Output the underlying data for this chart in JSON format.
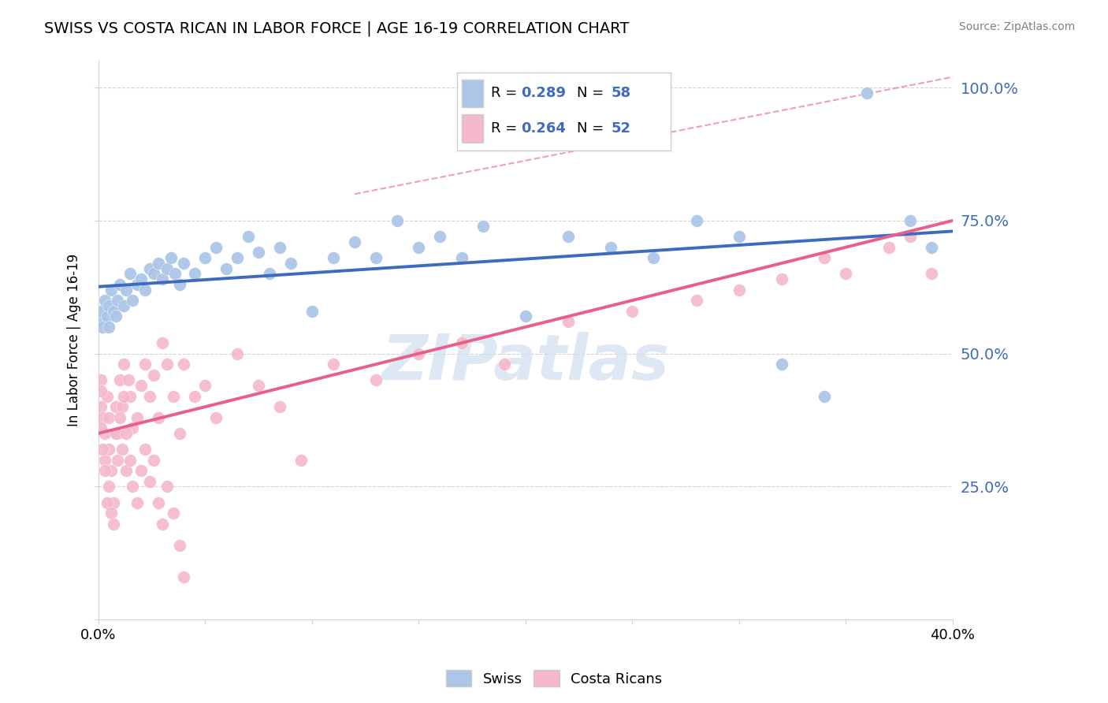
{
  "title": "SWISS VS COSTA RICAN IN LABOR FORCE | AGE 16-19 CORRELATION CHART",
  "source_text": "Source: ZipAtlas.com",
  "ylabel": "In Labor Force | Age 16-19",
  "xmin": 0.0,
  "xmax": 0.4,
  "ymin": 0.0,
  "ymax": 1.05,
  "yticks": [
    0.0,
    0.25,
    0.5,
    0.75,
    1.0
  ],
  "ytick_labels": [
    "",
    "25.0%",
    "50.0%",
    "75.0%",
    "100.0%"
  ],
  "xticks": [
    0.0,
    0.05,
    0.1,
    0.15,
    0.2,
    0.25,
    0.3,
    0.35,
    0.4
  ],
  "xtick_labels": [
    "0.0%",
    "",
    "",
    "",
    "",
    "",
    "",
    "",
    "40.0%"
  ],
  "swiss_color": "#adc6e8",
  "costa_color": "#f5b8cb",
  "swiss_line_color": "#3f6bbf",
  "costa_line_color": "#e8608a",
  "dash_color": "#e8608a",
  "swiss_R": 0.289,
  "swiss_N": 58,
  "costa_R": 0.264,
  "costa_N": 52,
  "watermark": "ZIPatlas",
  "swiss_x": [
    0.001,
    0.001,
    0.002,
    0.003,
    0.004,
    0.005,
    0.005,
    0.006,
    0.007,
    0.008,
    0.009,
    0.01,
    0.012,
    0.013,
    0.015,
    0.016,
    0.018,
    0.02,
    0.022,
    0.024,
    0.026,
    0.028,
    0.03,
    0.032,
    0.034,
    0.036,
    0.038,
    0.04,
    0.045,
    0.05,
    0.055,
    0.06,
    0.065,
    0.07,
    0.075,
    0.08,
    0.085,
    0.09,
    0.1,
    0.11,
    0.12,
    0.13,
    0.14,
    0.15,
    0.16,
    0.17,
    0.18,
    0.2,
    0.22,
    0.24,
    0.26,
    0.28,
    0.3,
    0.32,
    0.34,
    0.36,
    0.38,
    0.39
  ],
  "swiss_y": [
    0.56,
    0.58,
    0.55,
    0.6,
    0.57,
    0.59,
    0.55,
    0.62,
    0.58,
    0.57,
    0.6,
    0.63,
    0.59,
    0.62,
    0.65,
    0.6,
    0.63,
    0.64,
    0.62,
    0.66,
    0.65,
    0.67,
    0.64,
    0.66,
    0.68,
    0.65,
    0.63,
    0.67,
    0.65,
    0.68,
    0.7,
    0.66,
    0.68,
    0.72,
    0.69,
    0.65,
    0.7,
    0.67,
    0.58,
    0.68,
    0.71,
    0.68,
    0.75,
    0.7,
    0.72,
    0.68,
    0.74,
    0.57,
    0.72,
    0.7,
    0.68,
    0.75,
    0.72,
    0.48,
    0.42,
    0.99,
    0.75,
    0.7
  ],
  "costa_x": [
    0.001,
    0.001,
    0.002,
    0.003,
    0.003,
    0.004,
    0.005,
    0.005,
    0.006,
    0.007,
    0.008,
    0.009,
    0.01,
    0.011,
    0.012,
    0.013,
    0.014,
    0.015,
    0.016,
    0.018,
    0.02,
    0.022,
    0.024,
    0.026,
    0.028,
    0.03,
    0.032,
    0.035,
    0.038,
    0.04,
    0.045,
    0.05,
    0.055,
    0.065,
    0.075,
    0.085,
    0.095,
    0.11,
    0.13,
    0.15,
    0.17,
    0.19,
    0.22,
    0.25,
    0.28,
    0.3,
    0.32,
    0.34,
    0.35,
    0.37,
    0.38,
    0.39
  ],
  "costa_y": [
    0.45,
    0.4,
    0.38,
    0.35,
    0.3,
    0.42,
    0.38,
    0.32,
    0.28,
    0.22,
    0.4,
    0.35,
    0.45,
    0.4,
    0.48,
    0.28,
    0.45,
    0.42,
    0.36,
    0.38,
    0.44,
    0.48,
    0.42,
    0.46,
    0.38,
    0.52,
    0.48,
    0.42,
    0.35,
    0.48,
    0.42,
    0.44,
    0.38,
    0.5,
    0.44,
    0.4,
    0.3,
    0.48,
    0.45,
    0.5,
    0.52,
    0.48,
    0.56,
    0.58,
    0.6,
    0.62,
    0.64,
    0.68,
    0.65,
    0.7,
    0.72,
    0.65
  ],
  "costa_low_x": [
    0.001,
    0.001,
    0.002,
    0.003,
    0.004,
    0.005,
    0.006,
    0.007,
    0.008,
    0.009,
    0.01,
    0.011,
    0.012,
    0.013,
    0.015,
    0.016,
    0.018,
    0.02,
    0.022,
    0.024,
    0.026,
    0.028,
    0.03,
    0.032,
    0.035,
    0.038,
    0.04
  ],
  "costa_low_y": [
    0.43,
    0.36,
    0.32,
    0.28,
    0.22,
    0.25,
    0.2,
    0.18,
    0.35,
    0.3,
    0.38,
    0.32,
    0.42,
    0.35,
    0.3,
    0.25,
    0.22,
    0.28,
    0.32,
    0.26,
    0.3,
    0.22,
    0.18,
    0.25,
    0.2,
    0.14,
    0.08
  ]
}
